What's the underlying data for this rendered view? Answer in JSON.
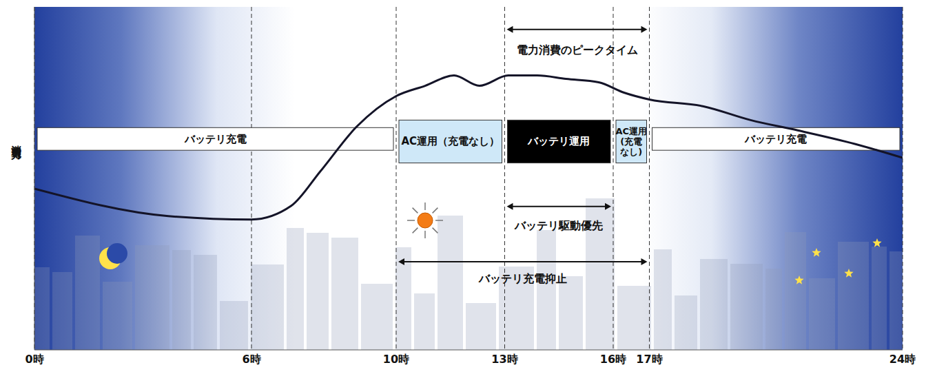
{
  "chart_data": {
    "type": "line",
    "y_label": "消費電力",
    "x": [
      0,
      3.7,
      6,
      7.1,
      7.9,
      8.9,
      10,
      10.8,
      11.6,
      12.3,
      13.1,
      13.9,
      14.7,
      15.6,
      16.3,
      17,
      18.5,
      19.8,
      21.1,
      22.7,
      24
    ],
    "values": [
      47,
      39,
      38,
      42,
      52,
      65,
      74,
      77,
      80,
      77,
      80,
      80,
      79,
      78,
      75,
      73,
      71,
      67,
      64,
      60,
      56
    ],
    "color": "#141428",
    "xlim": [
      0,
      24
    ],
    "xticks": [
      {
        "value": 0,
        "label": "0時"
      },
      {
        "value": 6,
        "label": "6時"
      },
      {
        "value": 10,
        "label": "10時"
      },
      {
        "value": 13,
        "label": "13時"
      },
      {
        "value": 16,
        "label": "16時"
      },
      {
        "value": 17,
        "label": "17時"
      },
      {
        "value": 24,
        "label": "24時"
      }
    ],
    "ylim": [
      0,
      100
    ],
    "tick_labels": "x",
    "grid": true,
    "periods": [
      {
        "label": "バッテリ充電",
        "start": 0,
        "end": 10,
        "color": "#ffffff"
      },
      {
        "label": "AC運用（充電なし）",
        "start": 10,
        "end": 13,
        "color": "#cfe8f8"
      },
      {
        "label": "バッテリ運用",
        "start": 13,
        "end": 16,
        "color": "#000000"
      },
      {
        "label": "AC運用(充電なし)",
        "start": 16,
        "end": 17,
        "color": "#cfe8f8"
      },
      {
        "label": "バッテリ充電",
        "start": 17,
        "end": 24,
        "color": "#ffffff"
      }
    ],
    "spans": [
      {
        "label": "電力消費のピークタイム",
        "start": 13,
        "end": 17
      },
      {
        "label": "バッテリ駆動優先",
        "start": 13,
        "end": 16
      },
      {
        "label": "バッテリ充電抑止",
        "start": 10,
        "end": 17
      }
    ]
  }
}
